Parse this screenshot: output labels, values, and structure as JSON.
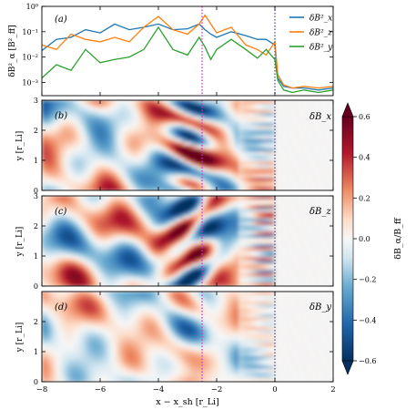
{
  "chart_data": [
    {
      "panel": "(a)",
      "type": "line",
      "ylabel": "δB²_α [B²_ff]",
      "yscale": "log",
      "ylim": [
        0.0003,
        1
      ],
      "xlim": [
        -8,
        2
      ],
      "yticks": [
        {
          "v": 1,
          "label": "10⁰"
        },
        {
          "v": 0.1,
          "label": "10⁻¹"
        },
        {
          "v": 0.01,
          "label": "10⁻²"
        },
        {
          "v": 0.001,
          "label": "10⁻³"
        }
      ],
      "legend": [
        "δB²_x",
        "δB²_z",
        "δB²_y"
      ],
      "legend_position": "top-right",
      "series": [
        {
          "name": "δB²_x",
          "color": "#1f77b4",
          "x": [
            -8,
            -7.5,
            -7,
            -6.5,
            -6,
            -5.5,
            -5,
            -4.5,
            -4,
            -3.5,
            -3,
            -2.6,
            -2.4,
            -2.2,
            -2,
            -1.5,
            -1,
            -0.6,
            -0.3,
            0,
            0.1,
            0.3,
            0.6,
            1,
            1.5,
            2
          ],
          "y": [
            0.018,
            0.05,
            0.06,
            0.12,
            0.09,
            0.2,
            0.12,
            0.15,
            0.2,
            0.12,
            0.13,
            0.2,
            0.12,
            0.08,
            0.06,
            0.1,
            0.07,
            0.05,
            0.05,
            0.03,
            0.0015,
            0.0007,
            0.0006,
            0.0006,
            0.0005,
            0.0006
          ]
        },
        {
          "name": "δB²_z",
          "color": "#ff7f0e",
          "x": [
            -8,
            -7.5,
            -7,
            -6.5,
            -6,
            -5.5,
            -5,
            -4.5,
            -4,
            -3.5,
            -3,
            -2.6,
            -2.4,
            -2.2,
            -2,
            -1.5,
            -1,
            -0.6,
            -0.3,
            0,
            0.1,
            0.3,
            0.6,
            1,
            1.5,
            2
          ],
          "y": [
            0.03,
            0.02,
            0.08,
            0.05,
            0.04,
            0.06,
            0.04,
            0.15,
            0.4,
            0.12,
            0.08,
            0.2,
            0.45,
            0.2,
            0.09,
            0.15,
            0.03,
            0.02,
            0.012,
            0.04,
            0.002,
            0.0008,
            0.0006,
            0.0007,
            0.0006,
            0.0007
          ]
        },
        {
          "name": "δB²_y",
          "color": "#2ca02c",
          "x": [
            -8,
            -7.5,
            -7,
            -6.5,
            -6,
            -5.5,
            -5,
            -4.5,
            -4,
            -3.5,
            -3,
            -2.6,
            -2.4,
            -2.2,
            -2,
            -1.5,
            -1,
            -0.6,
            -0.3,
            0,
            0.1,
            0.3,
            0.6,
            1,
            1.5,
            2
          ],
          "y": [
            0.0015,
            0.005,
            0.003,
            0.02,
            0.006,
            0.008,
            0.01,
            0.02,
            0.15,
            0.02,
            0.012,
            0.06,
            0.025,
            0.008,
            0.02,
            0.05,
            0.02,
            0.009,
            0.02,
            0.008,
            0.0012,
            0.0005,
            0.0004,
            0.0005,
            0.0004,
            0.0005
          ]
        }
      ]
    },
    {
      "panel": "(b)",
      "type": "heatmap",
      "field": "δB_x",
      "ylabel": "y [r_Li]",
      "ylim": [
        0,
        3
      ],
      "xlim": [
        -8,
        2
      ],
      "yticks": [
        0,
        1,
        2,
        3
      ]
    },
    {
      "panel": "(c)",
      "type": "heatmap",
      "field": "δB_z",
      "ylabel": "y [r_Li]",
      "ylim": [
        0,
        3
      ],
      "xlim": [
        -8,
        2
      ],
      "yticks": [
        0,
        1,
        2,
        3
      ]
    },
    {
      "panel": "(d)",
      "type": "heatmap",
      "field": "δB_y",
      "ylabel": "y [r_Li]",
      "ylim": [
        0,
        3
      ],
      "xlim": [
        -8,
        2
      ],
      "yticks": [
        0,
        1,
        2
      ]
    }
  ],
  "xaxis": {
    "label": "x − x_sh [r_Li]",
    "ticks": [
      -8,
      -6,
      -4,
      -2,
      0,
      2
    ],
    "tick_labels": [
      "−8",
      "−6",
      "−4",
      "−2",
      "0",
      "2"
    ],
    "vlines": [
      {
        "x": -2.5,
        "color": "#cc33cc"
      },
      {
        "x": 0,
        "color": "#555577"
      }
    ]
  },
  "colorbar": {
    "label": "δB_α/B_ff",
    "range": [
      -0.6,
      0.6
    ],
    "ticks": [
      0.6,
      0.4,
      0.2,
      0.0,
      -0.2,
      -0.4,
      -0.6
    ],
    "tick_labels": [
      "0.6",
      "0.4",
      "0.2",
      "0.0",
      "−0.2",
      "−0.4",
      "−0.6"
    ],
    "colormap": "RdBu_r"
  }
}
